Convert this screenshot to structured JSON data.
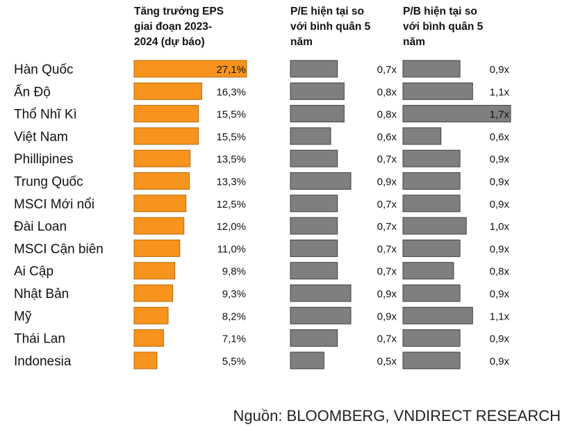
{
  "chart_data": {
    "type": "bar",
    "categories": [
      "Hàn Quốc",
      "Ấn Độ",
      "Thổ Nhĩ Kì",
      "Việt Nam",
      "Phillipines",
      "Trung Quốc",
      "MSCI Mới nổi",
      "Đài Loan",
      "MSCI Cận biên",
      "Ai Cập",
      "Nhật Bản",
      "Mỹ",
      "Thái Lan",
      "Indonesia"
    ],
    "series": [
      {
        "name": "Tăng trưởng EPS giai đoạn 2023-2024 (dự báo)",
        "values": [
          27.1,
          16.3,
          15.5,
          15.5,
          13.5,
          13.3,
          12.5,
          12.0,
          11.0,
          9.8,
          9.3,
          8.2,
          7.1,
          5.5
        ],
        "labels": [
          "27,1%",
          "16,3%",
          "15,5%",
          "15,5%",
          "13,5%",
          "13,3%",
          "12,5%",
          "12,0%",
          "11,0%",
          "9,8%",
          "9,3%",
          "8,2%",
          "7,1%",
          "5,5%"
        ],
        "max": 27.1,
        "color": "#F7941D"
      },
      {
        "name": "P/E hiện tại so với bình quân 5 năm",
        "values": [
          0.7,
          0.8,
          0.8,
          0.6,
          0.7,
          0.9,
          0.7,
          0.7,
          0.7,
          0.7,
          0.9,
          0.9,
          0.7,
          0.5
        ],
        "labels": [
          "0,7x",
          "0,8x",
          "0,8x",
          "0,6x",
          "0,7x",
          "0,9x",
          "0,7x",
          "0,7x",
          "0,7x",
          "0,7x",
          "0,9x",
          "0,9x",
          "0,7x",
          "0,5x"
        ],
        "max": 0.9,
        "color": "#7F7F7F"
      },
      {
        "name": "P/B hiện tại so với bình quân 5 năm",
        "values": [
          0.9,
          1.1,
          1.7,
          0.6,
          0.9,
          0.9,
          0.9,
          1.0,
          0.9,
          0.8,
          0.9,
          1.1,
          0.9,
          0.9
        ],
        "labels": [
          "0,9x",
          "1,1x",
          "1,7x",
          "0,6x",
          "0,9x",
          "0,9x",
          "0,9x",
          "1,0x",
          "0,9x",
          "0,8x",
          "0,9x",
          "1,1x",
          "0,9x",
          "0,9x"
        ],
        "max": 1.7,
        "color": "#7F7F7F"
      }
    ]
  },
  "headers": {
    "eps": "Tăng trưởng EPS\ngiai đoạn 2023-\n2024 (dự báo)",
    "pe": "P/E hiện tại so\nvới bình quân 5\nnăm",
    "pb": "P/B hiện tại so\nvới bình quân 5\nnăm"
  },
  "source": "Nguồn: BLOOMBERG, VNDIRECT RESEARCH"
}
